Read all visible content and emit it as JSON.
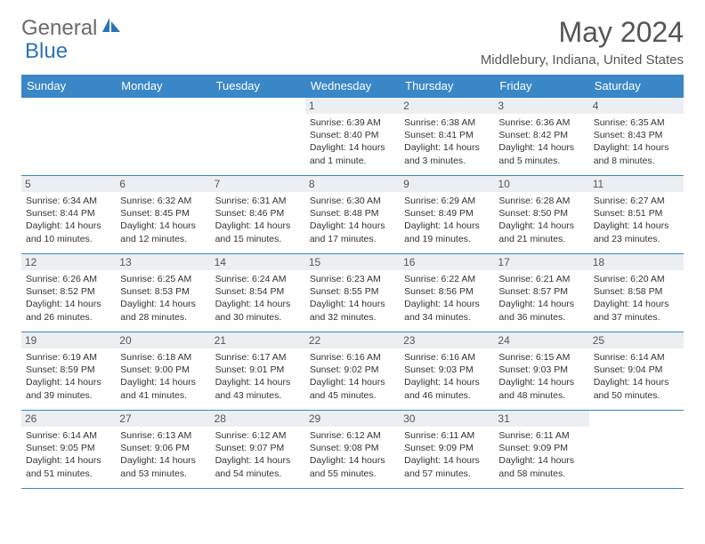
{
  "logo": {
    "word1": "General",
    "word2": "Blue"
  },
  "title": "May 2024",
  "location": "Middlebury, Indiana, United States",
  "colors": {
    "header_bg": "#3a87c7",
    "header_text": "#ffffff",
    "daynum_bg": "#eceff1",
    "border": "#3a87c7",
    "logo_gray": "#6a6a6a",
    "logo_blue": "#2d72b8"
  },
  "weekdays": [
    "Sunday",
    "Monday",
    "Tuesday",
    "Wednesday",
    "Thursday",
    "Friday",
    "Saturday"
  ],
  "weeks": [
    [
      null,
      null,
      null,
      {
        "n": "1",
        "sr": "Sunrise: 6:39 AM",
        "ss": "Sunset: 8:40 PM",
        "dl": "Daylight: 14 hours and 1 minute."
      },
      {
        "n": "2",
        "sr": "Sunrise: 6:38 AM",
        "ss": "Sunset: 8:41 PM",
        "dl": "Daylight: 14 hours and 3 minutes."
      },
      {
        "n": "3",
        "sr": "Sunrise: 6:36 AM",
        "ss": "Sunset: 8:42 PM",
        "dl": "Daylight: 14 hours and 5 minutes."
      },
      {
        "n": "4",
        "sr": "Sunrise: 6:35 AM",
        "ss": "Sunset: 8:43 PM",
        "dl": "Daylight: 14 hours and 8 minutes."
      }
    ],
    [
      {
        "n": "5",
        "sr": "Sunrise: 6:34 AM",
        "ss": "Sunset: 8:44 PM",
        "dl": "Daylight: 14 hours and 10 minutes."
      },
      {
        "n": "6",
        "sr": "Sunrise: 6:32 AM",
        "ss": "Sunset: 8:45 PM",
        "dl": "Daylight: 14 hours and 12 minutes."
      },
      {
        "n": "7",
        "sr": "Sunrise: 6:31 AM",
        "ss": "Sunset: 8:46 PM",
        "dl": "Daylight: 14 hours and 15 minutes."
      },
      {
        "n": "8",
        "sr": "Sunrise: 6:30 AM",
        "ss": "Sunset: 8:48 PM",
        "dl": "Daylight: 14 hours and 17 minutes."
      },
      {
        "n": "9",
        "sr": "Sunrise: 6:29 AM",
        "ss": "Sunset: 8:49 PM",
        "dl": "Daylight: 14 hours and 19 minutes."
      },
      {
        "n": "10",
        "sr": "Sunrise: 6:28 AM",
        "ss": "Sunset: 8:50 PM",
        "dl": "Daylight: 14 hours and 21 minutes."
      },
      {
        "n": "11",
        "sr": "Sunrise: 6:27 AM",
        "ss": "Sunset: 8:51 PM",
        "dl": "Daylight: 14 hours and 23 minutes."
      }
    ],
    [
      {
        "n": "12",
        "sr": "Sunrise: 6:26 AM",
        "ss": "Sunset: 8:52 PM",
        "dl": "Daylight: 14 hours and 26 minutes."
      },
      {
        "n": "13",
        "sr": "Sunrise: 6:25 AM",
        "ss": "Sunset: 8:53 PM",
        "dl": "Daylight: 14 hours and 28 minutes."
      },
      {
        "n": "14",
        "sr": "Sunrise: 6:24 AM",
        "ss": "Sunset: 8:54 PM",
        "dl": "Daylight: 14 hours and 30 minutes."
      },
      {
        "n": "15",
        "sr": "Sunrise: 6:23 AM",
        "ss": "Sunset: 8:55 PM",
        "dl": "Daylight: 14 hours and 32 minutes."
      },
      {
        "n": "16",
        "sr": "Sunrise: 6:22 AM",
        "ss": "Sunset: 8:56 PM",
        "dl": "Daylight: 14 hours and 34 minutes."
      },
      {
        "n": "17",
        "sr": "Sunrise: 6:21 AM",
        "ss": "Sunset: 8:57 PM",
        "dl": "Daylight: 14 hours and 36 minutes."
      },
      {
        "n": "18",
        "sr": "Sunrise: 6:20 AM",
        "ss": "Sunset: 8:58 PM",
        "dl": "Daylight: 14 hours and 37 minutes."
      }
    ],
    [
      {
        "n": "19",
        "sr": "Sunrise: 6:19 AM",
        "ss": "Sunset: 8:59 PM",
        "dl": "Daylight: 14 hours and 39 minutes."
      },
      {
        "n": "20",
        "sr": "Sunrise: 6:18 AM",
        "ss": "Sunset: 9:00 PM",
        "dl": "Daylight: 14 hours and 41 minutes."
      },
      {
        "n": "21",
        "sr": "Sunrise: 6:17 AM",
        "ss": "Sunset: 9:01 PM",
        "dl": "Daylight: 14 hours and 43 minutes."
      },
      {
        "n": "22",
        "sr": "Sunrise: 6:16 AM",
        "ss": "Sunset: 9:02 PM",
        "dl": "Daylight: 14 hours and 45 minutes."
      },
      {
        "n": "23",
        "sr": "Sunrise: 6:16 AM",
        "ss": "Sunset: 9:03 PM",
        "dl": "Daylight: 14 hours and 46 minutes."
      },
      {
        "n": "24",
        "sr": "Sunrise: 6:15 AM",
        "ss": "Sunset: 9:03 PM",
        "dl": "Daylight: 14 hours and 48 minutes."
      },
      {
        "n": "25",
        "sr": "Sunrise: 6:14 AM",
        "ss": "Sunset: 9:04 PM",
        "dl": "Daylight: 14 hours and 50 minutes."
      }
    ],
    [
      {
        "n": "26",
        "sr": "Sunrise: 6:14 AM",
        "ss": "Sunset: 9:05 PM",
        "dl": "Daylight: 14 hours and 51 minutes."
      },
      {
        "n": "27",
        "sr": "Sunrise: 6:13 AM",
        "ss": "Sunset: 9:06 PM",
        "dl": "Daylight: 14 hours and 53 minutes."
      },
      {
        "n": "28",
        "sr": "Sunrise: 6:12 AM",
        "ss": "Sunset: 9:07 PM",
        "dl": "Daylight: 14 hours and 54 minutes."
      },
      {
        "n": "29",
        "sr": "Sunrise: 6:12 AM",
        "ss": "Sunset: 9:08 PM",
        "dl": "Daylight: 14 hours and 55 minutes."
      },
      {
        "n": "30",
        "sr": "Sunrise: 6:11 AM",
        "ss": "Sunset: 9:09 PM",
        "dl": "Daylight: 14 hours and 57 minutes."
      },
      {
        "n": "31",
        "sr": "Sunrise: 6:11 AM",
        "ss": "Sunset: 9:09 PM",
        "dl": "Daylight: 14 hours and 58 minutes."
      },
      null
    ]
  ]
}
